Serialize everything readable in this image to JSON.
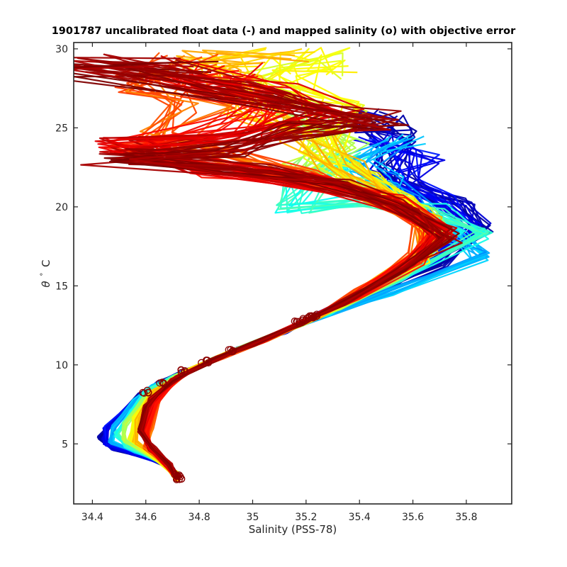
{
  "chart_data": {
    "type": "line",
    "title": "1901787 uncalibrated float data (-) and mapped salinity (o) with objective error",
    "xlabel": "Salinity (PSS-78)",
    "ylabel_symbol": "θ",
    "ylabel_unit": "C",
    "xlim": [
      34.33,
      35.97
    ],
    "ylim": [
      1.2,
      30.4
    ],
    "xticks": [
      34.4,
      34.6,
      34.8,
      35,
      35.2,
      35.4,
      35.6,
      35.8
    ],
    "yticks": [
      5,
      10,
      15,
      20,
      25,
      30
    ],
    "grid": false,
    "colormap": [
      "#00008f",
      "#0000ff",
      "#0080ff",
      "#00ffff",
      "#80ff80",
      "#ffff00",
      "#ff8000",
      "#ff0000",
      "#800000"
    ],
    "mapped_marker_color": "#8b0000",
    "profile_groups": [
      {
        "color_index": 0.05,
        "points": [
          [
            34.72,
            2.9
          ],
          [
            34.7,
            3.5
          ],
          [
            34.62,
            4.1
          ],
          [
            34.48,
            4.7
          ],
          [
            34.43,
            5.4
          ],
          [
            34.48,
            6.4
          ],
          [
            34.58,
            8.1
          ],
          [
            34.65,
            8.9
          ],
          [
            34.75,
            9.6
          ],
          [
            34.85,
            10.3
          ],
          [
            34.95,
            11.0
          ],
          [
            35.12,
            12.1
          ],
          [
            35.25,
            13.1
          ],
          [
            35.48,
            14.6
          ],
          [
            35.7,
            16.3
          ],
          [
            35.84,
            18.7
          ],
          [
            35.76,
            20.2
          ],
          [
            35.6,
            21.3
          ],
          [
            35.5,
            22.5
          ],
          [
            35.55,
            24.3
          ],
          [
            35.5,
            25.2
          ],
          [
            35.44,
            25.6
          ]
        ]
      },
      {
        "color_index": 0.12,
        "points": [
          [
            34.72,
            3.0
          ],
          [
            34.66,
            3.8
          ],
          [
            34.55,
            4.4
          ],
          [
            34.45,
            5.0
          ],
          [
            34.45,
            6.0
          ],
          [
            34.55,
            7.6
          ],
          [
            34.62,
            8.5
          ],
          [
            34.74,
            9.5
          ],
          [
            34.85,
            10.3
          ],
          [
            34.95,
            11.0
          ],
          [
            35.12,
            12.1
          ],
          [
            35.25,
            13.2
          ],
          [
            35.45,
            14.9
          ],
          [
            35.65,
            16.7
          ],
          [
            35.8,
            18.6
          ],
          [
            35.68,
            20.6
          ],
          [
            35.55,
            21.8
          ],
          [
            35.62,
            23.2
          ],
          [
            35.48,
            24.2
          ]
        ]
      },
      {
        "color_index": 0.3,
        "points": [
          [
            34.72,
            2.9
          ],
          [
            34.67,
            3.8
          ],
          [
            34.56,
            4.5
          ],
          [
            34.47,
            5.1
          ],
          [
            34.48,
            6.1
          ],
          [
            34.56,
            7.7
          ],
          [
            34.63,
            8.6
          ],
          [
            34.75,
            9.5
          ],
          [
            34.85,
            10.3
          ],
          [
            34.95,
            11.0
          ],
          [
            35.12,
            12.1
          ],
          [
            35.26,
            13.1
          ],
          [
            35.52,
            14.6
          ],
          [
            35.86,
            16.9
          ],
          [
            35.75,
            18.2
          ],
          [
            35.6,
            20.5
          ],
          [
            35.48,
            21.7
          ],
          [
            35.38,
            22.8
          ],
          [
            35.55,
            24.2
          ]
        ]
      },
      {
        "color_index": 0.42,
        "points": [
          [
            34.72,
            3.0
          ],
          [
            34.64,
            4.0
          ],
          [
            34.53,
            4.8
          ],
          [
            34.49,
            5.6
          ],
          [
            34.55,
            7.0
          ],
          [
            34.6,
            8.3
          ],
          [
            34.7,
            9.2
          ],
          [
            34.82,
            10.1
          ],
          [
            34.95,
            11.0
          ],
          [
            35.15,
            12.4
          ],
          [
            35.28,
            13.3
          ],
          [
            35.55,
            15.5
          ],
          [
            35.84,
            18.3
          ],
          [
            35.66,
            19.8
          ],
          [
            35.43,
            20.5
          ],
          [
            35.15,
            20.0
          ],
          [
            35.2,
            21.5
          ],
          [
            35.35,
            23.0
          ]
        ]
      },
      {
        "color_index": 0.55,
        "points": [
          [
            34.72,
            3.1
          ],
          [
            34.62,
            4.3
          ],
          [
            34.52,
            5.2
          ],
          [
            34.52,
            6.2
          ],
          [
            34.6,
            8.0
          ],
          [
            34.72,
            9.3
          ],
          [
            34.85,
            10.3
          ],
          [
            34.98,
            11.2
          ],
          [
            35.18,
            12.6
          ],
          [
            35.32,
            13.6
          ],
          [
            35.55,
            15.8
          ],
          [
            35.7,
            18.1
          ],
          [
            35.62,
            19.8
          ],
          [
            35.45,
            21.2
          ],
          [
            35.2,
            22.3
          ],
          [
            35.33,
            24.0
          ],
          [
            35.18,
            25.6
          ]
        ]
      },
      {
        "color_index": 0.62,
        "points": [
          [
            34.72,
            3.0
          ],
          [
            34.63,
            4.2
          ],
          [
            34.54,
            5.3
          ],
          [
            34.56,
            6.6
          ],
          [
            34.62,
            8.2
          ],
          [
            34.74,
            9.4
          ],
          [
            34.88,
            10.5
          ],
          [
            35.05,
            11.6
          ],
          [
            35.22,
            12.9
          ],
          [
            35.4,
            14.5
          ],
          [
            35.62,
            16.7
          ],
          [
            35.68,
            18.6
          ],
          [
            35.55,
            20.3
          ],
          [
            35.4,
            22.0
          ],
          [
            35.25,
            23.4
          ],
          [
            35.3,
            26.6
          ],
          [
            35.1,
            27.8
          ],
          [
            35.22,
            29.3
          ],
          [
            35.28,
            28.8
          ]
        ]
      },
      {
        "color_index": 0.68,
        "points": [
          [
            34.72,
            2.7
          ],
          [
            34.65,
            4.0
          ],
          [
            34.56,
            5.1
          ],
          [
            34.57,
            6.5
          ],
          [
            34.63,
            8.3
          ],
          [
            34.76,
            9.6
          ],
          [
            34.9,
            10.7
          ],
          [
            35.08,
            11.8
          ],
          [
            35.25,
            13.1
          ],
          [
            35.42,
            14.8
          ],
          [
            35.65,
            17.2
          ],
          [
            35.65,
            19.2
          ],
          [
            35.5,
            20.8
          ],
          [
            35.35,
            22.4
          ],
          [
            35.2,
            24.5
          ],
          [
            35.0,
            26.0
          ],
          [
            34.92,
            28.0
          ],
          [
            34.85,
            29.2
          ],
          [
            35.1,
            29.4
          ]
        ]
      },
      {
        "color_index": 0.78,
        "points": [
          [
            34.72,
            2.8
          ],
          [
            34.66,
            3.9
          ],
          [
            34.6,
            4.8
          ],
          [
            34.62,
            6.0
          ],
          [
            34.65,
            8.0
          ],
          [
            34.74,
            9.4
          ],
          [
            34.88,
            10.5
          ],
          [
            35.05,
            11.6
          ],
          [
            35.22,
            12.9
          ],
          [
            35.4,
            14.6
          ],
          [
            35.62,
            16.9
          ],
          [
            35.64,
            18.8
          ],
          [
            35.45,
            20.6
          ],
          [
            35.15,
            22.0
          ],
          [
            34.85,
            23.5
          ],
          [
            34.65,
            24.3
          ],
          [
            34.82,
            26.6
          ],
          [
            34.6,
            27.8
          ],
          [
            34.72,
            29.0
          ]
        ]
      },
      {
        "color_index": 0.86,
        "points": [
          [
            34.72,
            2.9
          ],
          [
            34.68,
            3.8
          ],
          [
            34.62,
            4.7
          ],
          [
            34.6,
            5.8
          ],
          [
            34.64,
            7.6
          ],
          [
            34.73,
            9.3
          ],
          [
            34.87,
            10.4
          ],
          [
            35.03,
            11.5
          ],
          [
            35.2,
            12.8
          ],
          [
            35.38,
            14.3
          ],
          [
            35.6,
            16.6
          ],
          [
            35.7,
            18.6
          ],
          [
            35.5,
            20.5
          ],
          [
            35.2,
            21.6
          ],
          [
            34.9,
            22.3
          ],
          [
            34.55,
            23.7
          ],
          [
            34.95,
            24.9
          ],
          [
            35.1,
            26.5
          ],
          [
            34.8,
            27.6
          ],
          [
            34.9,
            28.4
          ]
        ]
      },
      {
        "color_index": 0.93,
        "points": [
          [
            34.72,
            2.8
          ],
          [
            34.68,
            3.7
          ],
          [
            34.62,
            4.7
          ],
          [
            34.58,
            5.9
          ],
          [
            34.62,
            7.8
          ],
          [
            34.72,
            9.2
          ],
          [
            34.86,
            10.4
          ],
          [
            35.03,
            11.5
          ],
          [
            35.2,
            12.8
          ],
          [
            35.36,
            14.1
          ],
          [
            35.58,
            16.3
          ],
          [
            35.72,
            18.4
          ],
          [
            35.52,
            20.4
          ],
          [
            35.18,
            21.8
          ],
          [
            34.8,
            22.6
          ],
          [
            34.5,
            23.9
          ],
          [
            34.95,
            24.4
          ],
          [
            35.3,
            25.8
          ],
          [
            35.05,
            27.2
          ],
          [
            34.6,
            28.8
          ]
        ]
      },
      {
        "color_index": 0.99,
        "points": [
          [
            34.72,
            2.9
          ],
          [
            34.69,
            3.7
          ],
          [
            34.63,
            4.7
          ],
          [
            34.58,
            5.8
          ],
          [
            34.6,
            7.4
          ],
          [
            34.7,
            9.0
          ],
          [
            34.85,
            10.3
          ],
          [
            35.0,
            11.3
          ],
          [
            35.18,
            12.6
          ],
          [
            35.34,
            13.9
          ],
          [
            35.55,
            15.9
          ],
          [
            35.74,
            18.0
          ],
          [
            35.55,
            20.1
          ],
          [
            35.3,
            21.4
          ],
          [
            35.0,
            22.3
          ],
          [
            34.45,
            23.2
          ],
          [
            34.9,
            23.7
          ],
          [
            35.2,
            24.8
          ],
          [
            35.5,
            25.5
          ],
          [
            35.0,
            27.0
          ],
          [
            34.35,
            28.9
          ],
          [
            34.75,
            28.8
          ]
        ]
      }
    ],
    "mapped_points": [
      [
        34.72,
        2.8
      ],
      [
        34.72,
        3.0
      ],
      [
        34.6,
        8.3
      ],
      [
        34.66,
        8.9
      ],
      [
        34.74,
        9.6
      ],
      [
        34.82,
        10.2
      ],
      [
        34.92,
        10.9
      ],
      [
        35.16,
        12.7
      ],
      [
        35.2,
        12.9
      ],
      [
        35.23,
        13.1
      ],
      [
        35.22,
        13.0
      ]
    ]
  }
}
